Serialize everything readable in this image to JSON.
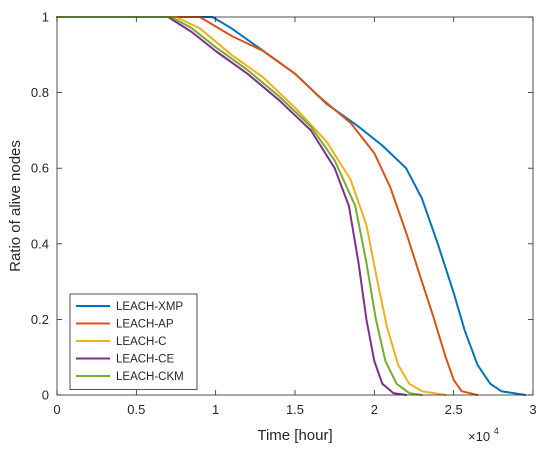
{
  "chart_data": {
    "type": "line",
    "xlabel": "Time [hour]",
    "ylabel": "Ratio of alive nodes",
    "xlim": [
      0,
      30000
    ],
    "ylim": [
      0,
      1
    ],
    "x_ticks": [
      0,
      5000,
      10000,
      15000,
      20000,
      25000,
      30000
    ],
    "x_tick_labels": [
      "0",
      "0.5",
      "1",
      "1.5",
      "2",
      "2.5",
      "3"
    ],
    "x_multiplier": {
      "base": "×10",
      "exponent": "4"
    },
    "y_ticks": [
      0,
      0.2,
      0.4,
      0.6,
      0.8,
      1
    ],
    "y_tick_labels": [
      "0",
      "0.2",
      "0.4",
      "0.6",
      "0.8",
      "1"
    ],
    "grid": false,
    "legend_position": "bottom-left",
    "series": [
      {
        "name": "LEACH-XMP",
        "color": "#0072BD",
        "points": [
          [
            0,
            1
          ],
          [
            9800,
            1
          ],
          [
            11000,
            0.97
          ],
          [
            13000,
            0.91
          ],
          [
            15000,
            0.85
          ],
          [
            17000,
            0.77
          ],
          [
            19000,
            0.71
          ],
          [
            20500,
            0.66
          ],
          [
            22000,
            0.6
          ],
          [
            23000,
            0.52
          ],
          [
            24000,
            0.4
          ],
          [
            25000,
            0.27
          ],
          [
            25700,
            0.17
          ],
          [
            26500,
            0.08
          ],
          [
            27300,
            0.03
          ],
          [
            28000,
            0.01
          ],
          [
            29500,
            0
          ]
        ]
      },
      {
        "name": "LEACH-AP",
        "color": "#D95319",
        "points": [
          [
            0,
            1
          ],
          [
            9000,
            1
          ],
          [
            11000,
            0.95
          ],
          [
            13000,
            0.91
          ],
          [
            15000,
            0.85
          ],
          [
            16500,
            0.79
          ],
          [
            18500,
            0.72
          ],
          [
            20000,
            0.64
          ],
          [
            21000,
            0.55
          ],
          [
            22000,
            0.43
          ],
          [
            23000,
            0.3
          ],
          [
            23700,
            0.21
          ],
          [
            24500,
            0.1
          ],
          [
            25000,
            0.04
          ],
          [
            25500,
            0.01
          ],
          [
            26500,
            0
          ]
        ]
      },
      {
        "name": "LEACH-C",
        "color": "#EDB120",
        "points": [
          [
            0,
            1
          ],
          [
            7500,
            1
          ],
          [
            9000,
            0.97
          ],
          [
            11000,
            0.9
          ],
          [
            13000,
            0.84
          ],
          [
            15000,
            0.76
          ],
          [
            17000,
            0.67
          ],
          [
            18500,
            0.57
          ],
          [
            19500,
            0.45
          ],
          [
            20200,
            0.3
          ],
          [
            20800,
            0.18
          ],
          [
            21500,
            0.08
          ],
          [
            22200,
            0.03
          ],
          [
            23000,
            0.01
          ],
          [
            24500,
            0
          ]
        ]
      },
      {
        "name": "LEACH-CE",
        "color": "#7E2F8E",
        "points": [
          [
            0,
            1
          ],
          [
            7000,
            1
          ],
          [
            8500,
            0.96
          ],
          [
            10000,
            0.91
          ],
          [
            12000,
            0.85
          ],
          [
            14000,
            0.78
          ],
          [
            16000,
            0.7
          ],
          [
            17500,
            0.6
          ],
          [
            18400,
            0.5
          ],
          [
            19000,
            0.35
          ],
          [
            19500,
            0.2
          ],
          [
            20000,
            0.09
          ],
          [
            20500,
            0.03
          ],
          [
            21200,
            0.005
          ],
          [
            22000,
            0
          ]
        ]
      },
      {
        "name": "LEACH-CKM",
        "color": "#77AC30",
        "points": [
          [
            0,
            1
          ],
          [
            7200,
            1
          ],
          [
            8500,
            0.97
          ],
          [
            10000,
            0.92
          ],
          [
            12000,
            0.86
          ],
          [
            14000,
            0.79
          ],
          [
            16000,
            0.71
          ],
          [
            17500,
            0.62
          ],
          [
            18800,
            0.5
          ],
          [
            19500,
            0.35
          ],
          [
            20100,
            0.2
          ],
          [
            20700,
            0.09
          ],
          [
            21400,
            0.03
          ],
          [
            22200,
            0.005
          ],
          [
            23000,
            0
          ]
        ]
      }
    ]
  }
}
